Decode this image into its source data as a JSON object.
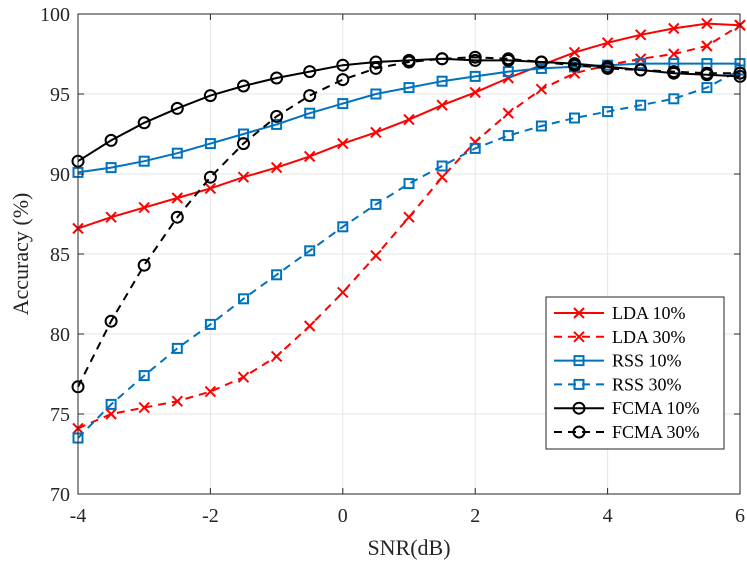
{
  "chart_data": {
    "type": "line",
    "title": "",
    "xlabel": "SNR(dB)",
    "ylabel": "Accuracy (%)",
    "xlim": [
      -4,
      6
    ],
    "ylim": [
      70,
      100
    ],
    "xticks": [
      -4,
      -2,
      0,
      2,
      4,
      6
    ],
    "yticks": [
      70,
      75,
      80,
      85,
      90,
      95,
      100
    ],
    "grid": true,
    "legend_position": "bottom-right",
    "x": [
      -4,
      -3.5,
      -3,
      -2.5,
      -2,
      -1.5,
      -1,
      -0.5,
      0,
      0.5,
      1,
      1.5,
      2,
      2.5,
      3,
      3.5,
      4,
      4.5,
      5,
      5.5,
      6
    ],
    "series": [
      {
        "name": "LDA 10%",
        "color": "#ff0000",
        "linestyle": "solid",
        "marker": "x",
        "values": [
          86.6,
          87.3,
          87.9,
          88.5,
          89.1,
          89.8,
          90.4,
          91.1,
          91.9,
          92.6,
          93.4,
          94.3,
          95.1,
          96.0,
          96.8,
          97.6,
          98.2,
          98.7,
          99.1,
          99.4,
          99.3
        ]
      },
      {
        "name": "LDA 30%",
        "color": "#ff0000",
        "linestyle": "dashed",
        "marker": "x",
        "values": [
          74.1,
          75.0,
          75.4,
          75.8,
          76.4,
          77.3,
          78.6,
          80.5,
          82.6,
          84.9,
          87.3,
          89.8,
          92.0,
          93.8,
          95.3,
          96.3,
          96.8,
          97.2,
          97.5,
          98.0,
          99.3
        ]
      },
      {
        "name": "RSS 10%",
        "color": "#0072bd",
        "linestyle": "solid",
        "marker": "square",
        "values": [
          90.1,
          90.4,
          90.8,
          91.3,
          91.9,
          92.5,
          93.1,
          93.8,
          94.4,
          95.0,
          95.4,
          95.8,
          96.1,
          96.4,
          96.6,
          96.7,
          96.8,
          96.9,
          96.9,
          96.9,
          96.9
        ]
      },
      {
        "name": "RSS 30%",
        "color": "#0072bd",
        "linestyle": "dashed",
        "marker": "square",
        "values": [
          73.5,
          75.6,
          77.4,
          79.1,
          80.6,
          82.2,
          83.7,
          85.2,
          86.7,
          88.1,
          89.4,
          90.5,
          91.6,
          92.4,
          93.0,
          93.5,
          93.9,
          94.3,
          94.7,
          95.4,
          96.5
        ]
      },
      {
        "name": "FCMA 10%",
        "color": "#000000",
        "linestyle": "solid",
        "marker": "circle",
        "values": [
          90.8,
          92.1,
          93.2,
          94.1,
          94.9,
          95.5,
          96.0,
          96.4,
          96.8,
          97.0,
          97.1,
          97.2,
          97.1,
          97.1,
          97.0,
          96.9,
          96.7,
          96.5,
          96.3,
          96.2,
          96.1
        ]
      },
      {
        "name": "FCMA 30%",
        "color": "#000000",
        "linestyle": "dashed",
        "marker": "circle",
        "values": [
          76.7,
          80.8,
          84.3,
          87.3,
          89.8,
          91.9,
          93.6,
          94.9,
          95.9,
          96.6,
          97.0,
          97.2,
          97.3,
          97.2,
          97.0,
          96.8,
          96.6,
          96.5,
          96.4,
          96.3,
          96.3
        ]
      }
    ]
  }
}
